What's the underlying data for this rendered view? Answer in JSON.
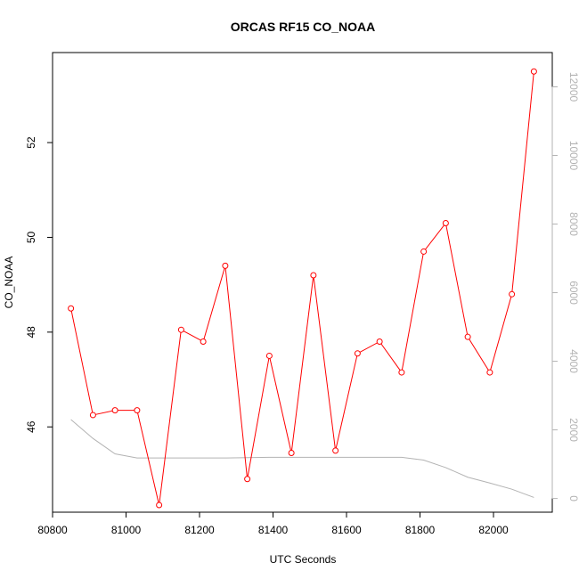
{
  "chart_data": {
    "type": "line",
    "title": "ORCAS RF15 CO_NOAA",
    "xlabel": "UTC Seconds",
    "ylabel": "CO_NOAA",
    "xlim": [
      80800,
      82160
    ],
    "ylim": [
      44.2,
      53.9
    ],
    "y2lim": [
      -400,
      13000
    ],
    "x_ticks": [
      80800,
      81000,
      81200,
      81400,
      81600,
      81800,
      82000
    ],
    "y_ticks": [
      46,
      48,
      50,
      52
    ],
    "y2_ticks": [
      0,
      2000,
      4000,
      6000,
      8000,
      10000,
      12000
    ],
    "series": [
      {
        "role": "primary",
        "color": "#ff0000",
        "marker": "open-circle",
        "x": [
          80850,
          80910,
          80970,
          81030,
          81090,
          81150,
          81210,
          81270,
          81330,
          81390,
          81450,
          81510,
          81570,
          81630,
          81690,
          81750,
          81810,
          81870,
          81930,
          81990,
          82050,
          82110
        ],
        "y": [
          48.5,
          46.25,
          46.35,
          46.35,
          44.35,
          48.05,
          47.8,
          49.4,
          44.9,
          47.5,
          45.45,
          49.2,
          45.5,
          47.55,
          47.8,
          47.15,
          49.7,
          50.3,
          47.9,
          47.15,
          48.8,
          53.5
        ]
      },
      {
        "role": "secondary",
        "axis": "right",
        "color": "#b3b3b3",
        "marker": "none",
        "x": [
          80850,
          80910,
          80970,
          81030,
          81090,
          81150,
          81210,
          81270,
          81330,
          81390,
          81450,
          81510,
          81570,
          81630,
          81690,
          81750,
          81810,
          81870,
          81930,
          81990,
          82050,
          82110
        ],
        "y": [
          2300,
          1750,
          1300,
          1180,
          1180,
          1180,
          1180,
          1180,
          1190,
          1200,
          1200,
          1200,
          1200,
          1200,
          1200,
          1200,
          1120,
          900,
          620,
          450,
          270,
          30
        ]
      }
    ]
  }
}
